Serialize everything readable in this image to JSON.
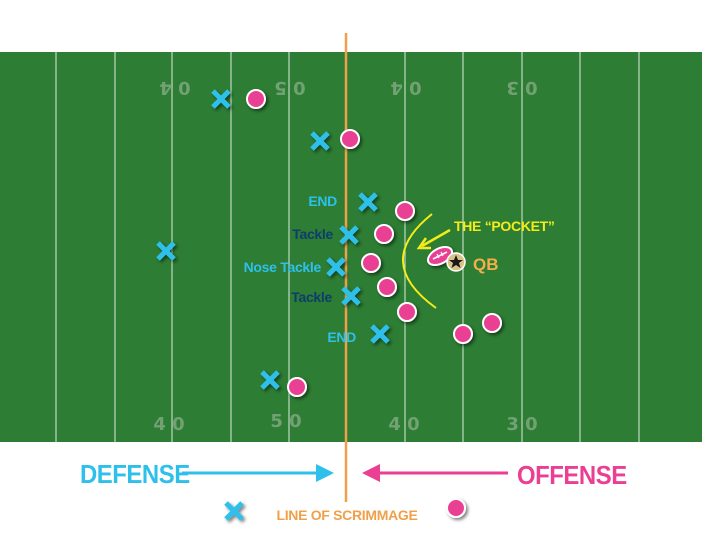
{
  "colors": {
    "field": "#2d7d34",
    "field_lines": "#d8e8d8",
    "defense": "#2ec0ea",
    "offense": "#ea3f93",
    "scrimmage": "#f0a04a",
    "pocket": "#f4ec1a",
    "qb_label": "#f3b04a",
    "dark_label": "#0e3d6b"
  },
  "field": {
    "yard_numbers_top": [
      "0 4",
      "0 5",
      "0 4",
      "0 3"
    ],
    "yard_numbers_bottom": [
      "4 0",
      "5 0",
      "4 0",
      "3 0"
    ]
  },
  "defense_labels": {
    "end_top": "END",
    "tackle_top": "Tackle",
    "nose_tackle": "Nose Tackle",
    "tackle_bottom": "Tackle",
    "end_bottom": "END"
  },
  "offense_labels": {
    "pocket": "THE “POCKET”",
    "qb": "QB"
  },
  "legend": {
    "defense": "DEFENSE",
    "offense": "OFFENSE",
    "line_of_scrimmage": "LINE OF SCRIMMAGE"
  },
  "icons": {
    "defense_marker": "x-mark-icon",
    "offense_marker": "circle-marker-icon",
    "qb_icon": "star-icon",
    "ball_icon": "football-icon"
  }
}
